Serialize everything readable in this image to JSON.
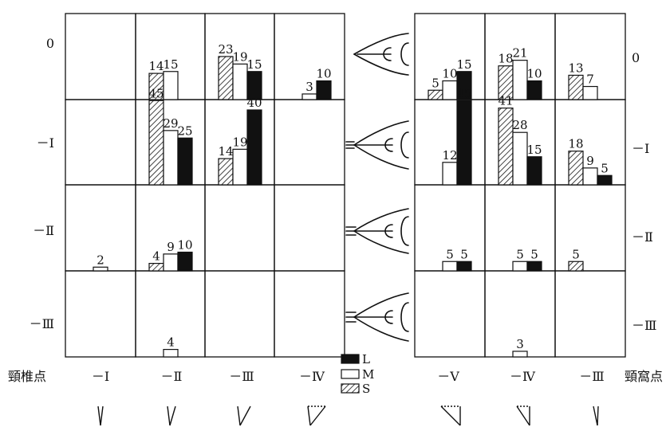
{
  "chart_data": [
    {
      "type": "bar",
      "panel": "left",
      "row_labels": [
        "0",
        "－Ⅰ",
        "－Ⅱ",
        "－Ⅲ"
      ],
      "col_labels": [
        "－Ⅰ",
        "－Ⅱ",
        "－Ⅲ",
        "－Ⅳ"
      ],
      "xlabel": "頸椎点",
      "series_order": [
        "S",
        "M",
        "L"
      ],
      "cells": [
        {
          "row": 0,
          "col": 1,
          "bars": [
            {
              "s": "S",
              "v": 14
            },
            {
              "s": "M",
              "v": 15
            }
          ]
        },
        {
          "row": 0,
          "col": 2,
          "bars": [
            {
              "s": "S",
              "v": 23
            },
            {
              "s": "M",
              "v": 19
            },
            {
              "s": "L",
              "v": 15
            }
          ]
        },
        {
          "row": 0,
          "col": 3,
          "bars": [
            {
              "s": "M",
              "v": 3
            },
            {
              "s": "L",
              "v": 10
            }
          ]
        },
        {
          "row": 1,
          "col": 1,
          "bars": [
            {
              "s": "S",
              "v": 45
            },
            {
              "s": "M",
              "v": 29
            },
            {
              "s": "L",
              "v": 25
            }
          ]
        },
        {
          "row": 1,
          "col": 2,
          "bars": [
            {
              "s": "S",
              "v": 14
            },
            {
              "s": "M",
              "v": 19
            },
            {
              "s": "L",
              "v": 40
            }
          ]
        },
        {
          "row": 2,
          "col": 0,
          "bars": [
            {
              "s": "M",
              "v": 2
            }
          ]
        },
        {
          "row": 2,
          "col": 1,
          "bars": [
            {
              "s": "S",
              "v": 4
            },
            {
              "s": "M",
              "v": 9
            },
            {
              "s": "L",
              "v": 10
            }
          ]
        },
        {
          "row": 3,
          "col": 1,
          "bars": [
            {
              "s": "M",
              "v": 4
            }
          ]
        }
      ]
    },
    {
      "type": "bar",
      "panel": "right",
      "row_labels": [
        "0",
        "－Ⅰ",
        "－Ⅱ",
        "－Ⅲ"
      ],
      "col_labels": [
        "－Ⅴ",
        "－Ⅳ",
        "－Ⅲ"
      ],
      "xlabel": "頸窩点",
      "series_order": [
        "S",
        "M",
        "L"
      ],
      "cells": [
        {
          "row": 0,
          "col": 0,
          "bars": [
            {
              "s": "S",
              "v": 5
            },
            {
              "s": "M",
              "v": 10
            },
            {
              "s": "L",
              "v": 15
            }
          ]
        },
        {
          "row": 0,
          "col": 1,
          "bars": [
            {
              "s": "S",
              "v": 18
            },
            {
              "s": "M",
              "v": 21
            },
            {
              "s": "L",
              "v": 10
            }
          ]
        },
        {
          "row": 0,
          "col": 2,
          "bars": [
            {
              "s": "S",
              "v": 13
            },
            {
              "s": "M",
              "v": 7
            }
          ]
        },
        {
          "row": 1,
          "col": 0,
          "bars": [
            {
              "s": "M",
              "v": 12
            },
            {
              "s": "L",
              "v": 45
            }
          ]
        },
        {
          "row": 1,
          "col": 1,
          "bars": [
            {
              "s": "S",
              "v": 41
            },
            {
              "s": "M",
              "v": 28
            },
            {
              "s": "L",
              "v": 15
            }
          ]
        },
        {
          "row": 1,
          "col": 2,
          "bars": [
            {
              "s": "S",
              "v": 18
            },
            {
              "s": "M",
              "v": 9
            },
            {
              "s": "L",
              "v": 5
            }
          ]
        },
        {
          "row": 2,
          "col": 0,
          "bars": [
            {
              "s": "M",
              "v": 5
            },
            {
              "s": "L",
              "v": 5
            }
          ]
        },
        {
          "row": 2,
          "col": 1,
          "bars": [
            {
              "s": "M",
              "v": 5
            },
            {
              "s": "L",
              "v": 5
            }
          ]
        },
        {
          "row": 2,
          "col": 2,
          "bars": [
            {
              "s": "S",
              "v": 5
            }
          ]
        },
        {
          "row": 3,
          "col": 1,
          "bars": [
            {
              "s": "M",
              "v": 3
            }
          ]
        }
      ]
    }
  ],
  "legend": [
    {
      "key": "L",
      "label": "L",
      "fill": "#111111"
    },
    {
      "key": "M",
      "label": "M",
      "fill": "#ffffff"
    },
    {
      "key": "S",
      "label": "S",
      "fill": "hatch"
    }
  ],
  "colors": {
    "ink": "#111111",
    "paper": "#ffffff"
  }
}
